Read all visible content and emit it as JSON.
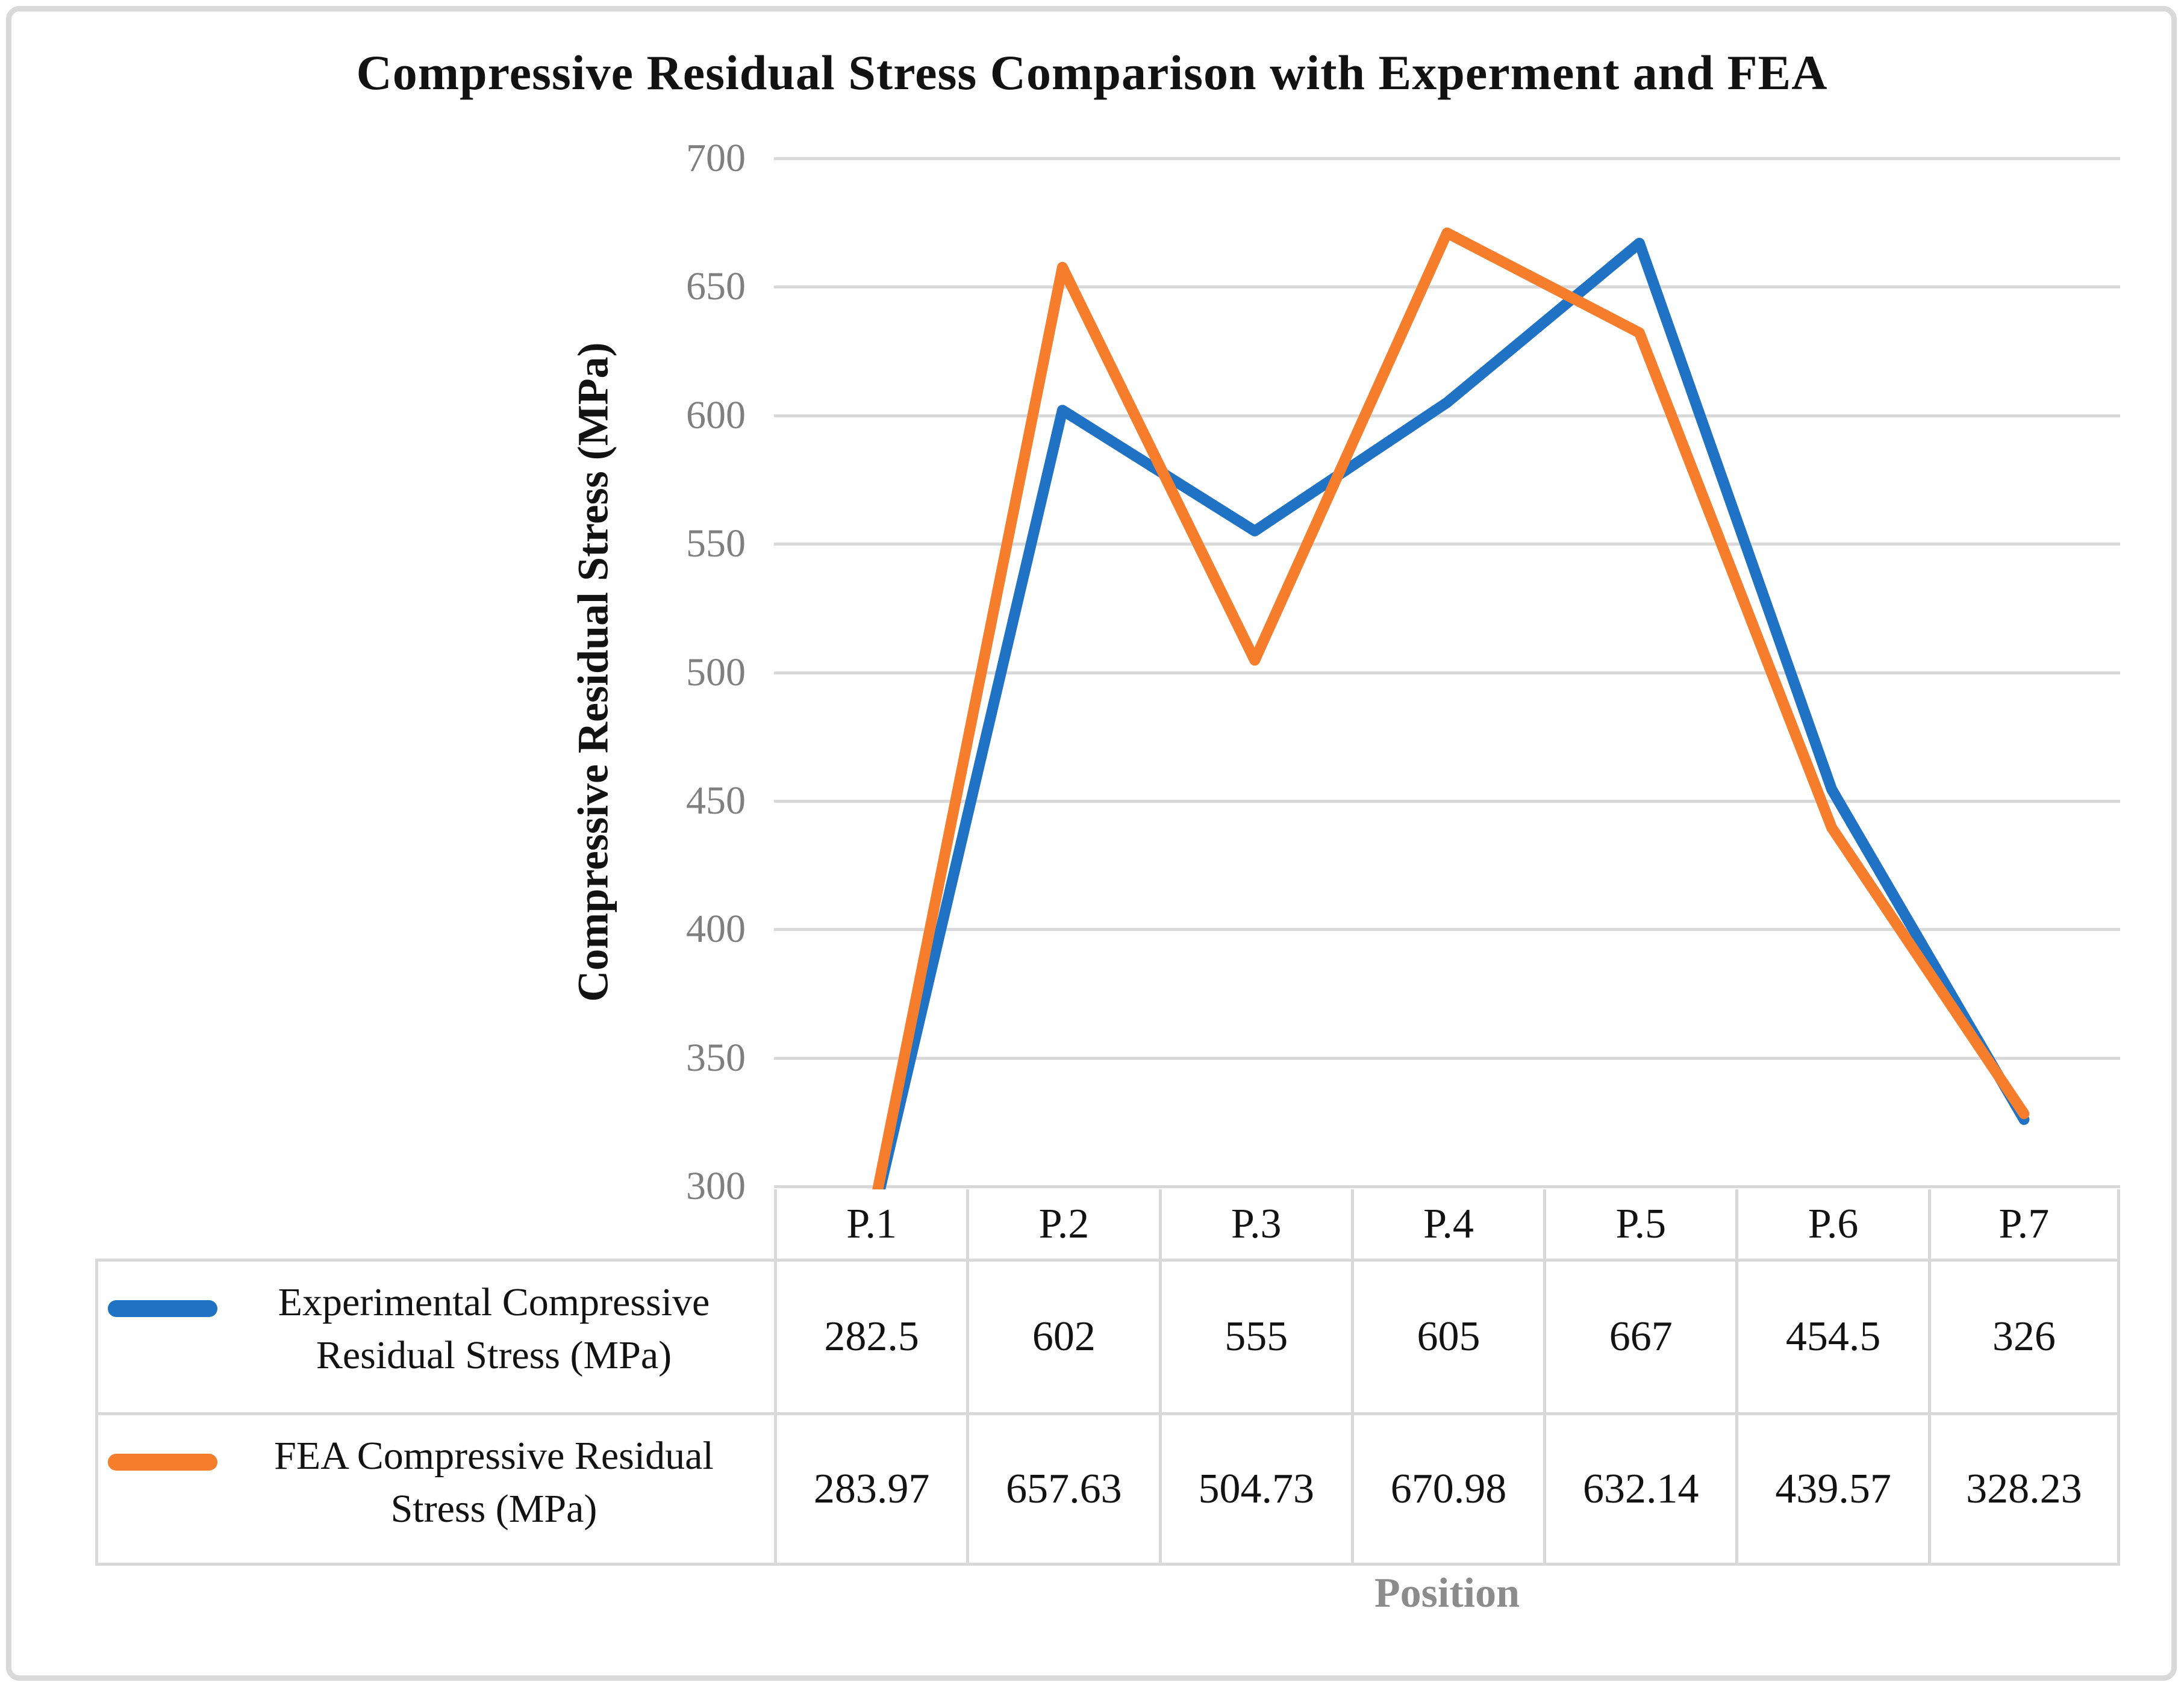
{
  "title": "Compressive Residual Stress Comparison with Experment and FEA",
  "chart_data": {
    "type": "line",
    "categories": [
      "P.1",
      "P.2",
      "P.3",
      "P.4",
      "P.5",
      "P.6",
      "P.7"
    ],
    "series": [
      {
        "name": "Experimental Compressive Residual Stress (MPa)",
        "color": "#1f72c4",
        "values": [
          282.5,
          602,
          555,
          605,
          667,
          454.5,
          326
        ]
      },
      {
        "name": "FEA Compressive Residual Stress (MPa)",
        "color": "#f57d2b",
        "values": [
          283.97,
          657.63,
          504.73,
          670.98,
          632.14,
          439.57,
          328.23
        ]
      }
    ],
    "xlabel": "Position",
    "ylabel": "Compressive Residual Stress (MPa)",
    "ylim": [
      300,
      700
    ],
    "ytick_step": 50,
    "yticks": [
      "700",
      "650",
      "600",
      "550",
      "500",
      "450",
      "400",
      "350",
      "300"
    ],
    "grid": true,
    "legend_position": "table-left",
    "line_width": 18
  },
  "table": {
    "row_labels": [
      {
        "line1": "Experimental Compressive",
        "line2": "Residual Stress (MPa)"
      },
      {
        "line1": "FEA Compressive Residual",
        "line2": "Stress (MPa)"
      }
    ],
    "values": [
      [
        "282.5",
        "602",
        "555",
        "605",
        "667",
        "454.5",
        "326"
      ],
      [
        "283.97",
        "657.63",
        "504.73",
        "670.98",
        "632.14",
        "439.57",
        "328.23"
      ]
    ]
  },
  "colors": {
    "experimental_blue": "#1f72c4",
    "fea_orange": "#f57d2b",
    "grid_gray": "#d9d9d9",
    "tick_label_gray": "#7f7f7f",
    "axis_title_gray": "#8c8c8c"
  }
}
